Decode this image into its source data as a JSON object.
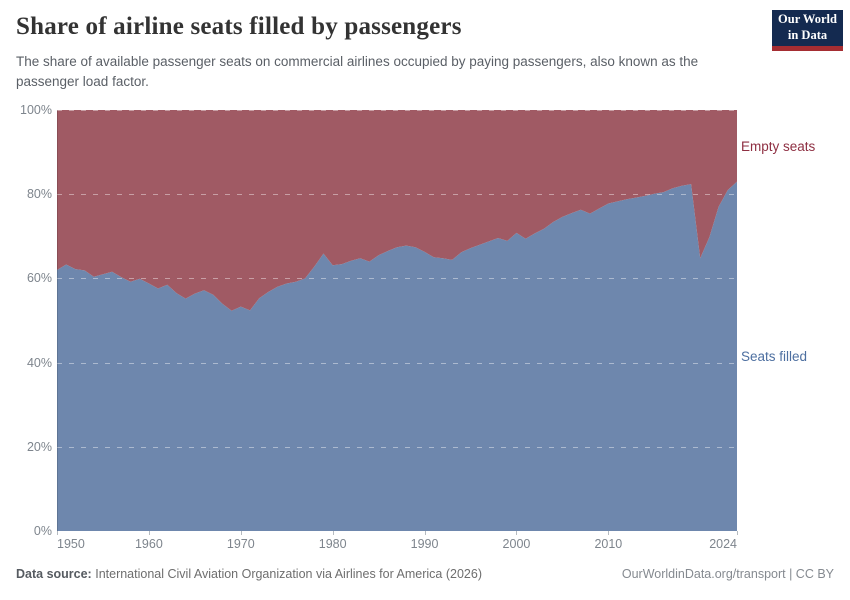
{
  "header": {
    "title": "Share of airline seats filled by passengers",
    "subtitle": "The share of available passenger seats on commercial airlines occupied by paying passengers, also known as the passenger load factor."
  },
  "logo": {
    "line1": "Our World",
    "line2": "in Data",
    "bg_color": "#142a50",
    "accent_color": "#a52d32"
  },
  "chart_data": {
    "type": "area",
    "stacked": true,
    "unit": "%",
    "title": "Share of airline seats filled by passengers",
    "xlabel": "",
    "ylabel": "",
    "ylim": [
      0,
      100
    ],
    "grid": "dashed horizontal gridlines, drawn over areas",
    "legend_position": "labels at right edge of areas",
    "x": [
      1950,
      1951,
      1952,
      1953,
      1954,
      1955,
      1956,
      1957,
      1958,
      1959,
      1960,
      1961,
      1962,
      1963,
      1964,
      1965,
      1966,
      1967,
      1968,
      1969,
      1970,
      1971,
      1972,
      1973,
      1974,
      1975,
      1976,
      1977,
      1978,
      1979,
      1980,
      1981,
      1982,
      1983,
      1984,
      1985,
      1986,
      1987,
      1988,
      1989,
      1990,
      1991,
      1992,
      1993,
      1994,
      1995,
      1996,
      1997,
      1998,
      1999,
      2000,
      2001,
      2002,
      2003,
      2004,
      2005,
      2006,
      2007,
      2008,
      2009,
      2010,
      2011,
      2012,
      2013,
      2014,
      2015,
      2016,
      2017,
      2018,
      2019,
      2020,
      2021,
      2022,
      2023,
      2024
    ],
    "series": [
      {
        "name": "Seats filled",
        "area_color": "#6e87ad",
        "label_color": "#4d6fa0",
        "values": [
          62.0,
          63.3,
          62.2,
          61.9,
          60.4,
          61.0,
          61.6,
          60.3,
          59.2,
          59.9,
          58.8,
          57.6,
          58.5,
          56.5,
          55.2,
          56.4,
          57.2,
          56.1,
          54.0,
          52.3,
          53.3,
          52.4,
          55.3,
          56.8,
          58.0,
          58.8,
          59.2,
          60.0,
          62.8,
          65.9,
          63.1,
          63.4,
          64.2,
          64.8,
          64.0,
          65.5,
          66.5,
          67.4,
          67.8,
          67.4,
          66.3,
          65.0,
          64.8,
          64.4,
          66.2,
          67.2,
          68.0,
          68.8,
          69.6,
          68.9,
          70.8,
          69.4,
          70.7,
          71.8,
          73.4,
          74.6,
          75.5,
          76.3,
          75.4,
          76.6,
          77.8,
          78.3,
          78.8,
          79.2,
          79.6,
          80.1,
          80.5,
          81.4,
          82.0,
          82.4,
          64.8,
          69.8,
          77.0,
          81.0,
          83.0
        ]
      },
      {
        "name": "Empty seats",
        "area_color": "#a05a64",
        "label_color": "#8e2f42",
        "values": [
          38.0,
          36.7,
          37.8,
          38.1,
          39.6,
          39.0,
          38.4,
          39.7,
          40.8,
          40.1,
          41.2,
          42.4,
          41.5,
          43.5,
          44.8,
          43.6,
          42.8,
          43.9,
          46.0,
          47.7,
          46.7,
          47.6,
          44.7,
          43.2,
          42.0,
          41.2,
          40.8,
          40.0,
          37.2,
          34.1,
          36.9,
          36.6,
          35.8,
          35.2,
          36.0,
          34.5,
          33.5,
          32.6,
          32.2,
          32.6,
          33.7,
          35.0,
          35.2,
          35.6,
          33.8,
          32.8,
          32.0,
          31.2,
          30.4,
          31.1,
          29.2,
          30.6,
          29.3,
          28.2,
          26.6,
          25.4,
          24.5,
          23.7,
          24.6,
          23.4,
          22.2,
          21.7,
          21.2,
          20.8,
          20.4,
          19.9,
          19.5,
          18.6,
          18.0,
          17.6,
          35.2,
          30.2,
          23.0,
          19.0,
          17.0
        ]
      }
    ],
    "yticks": [
      {
        "value": 0,
        "label": "0%"
      },
      {
        "value": 20,
        "label": "20%"
      },
      {
        "value": 40,
        "label": "40%"
      },
      {
        "value": 60,
        "label": "60%"
      },
      {
        "value": 80,
        "label": "80%"
      },
      {
        "value": 100,
        "label": "100%"
      }
    ],
    "xticks": [
      {
        "value": 1950,
        "label": "1950"
      },
      {
        "value": 1960,
        "label": "1960"
      },
      {
        "value": 1970,
        "label": "1970"
      },
      {
        "value": 1980,
        "label": "1980"
      },
      {
        "value": 1990,
        "label": "1990"
      },
      {
        "value": 2000,
        "label": "2000"
      },
      {
        "value": 2010,
        "label": "2010"
      },
      {
        "value": 2024,
        "label": "2024"
      }
    ]
  },
  "footer": {
    "data_source_label": "Data source:",
    "data_source": "International Civil Aviation Organization via Airlines for America (2026)",
    "credit": "OurWorldinData.org/transport | CC BY"
  }
}
